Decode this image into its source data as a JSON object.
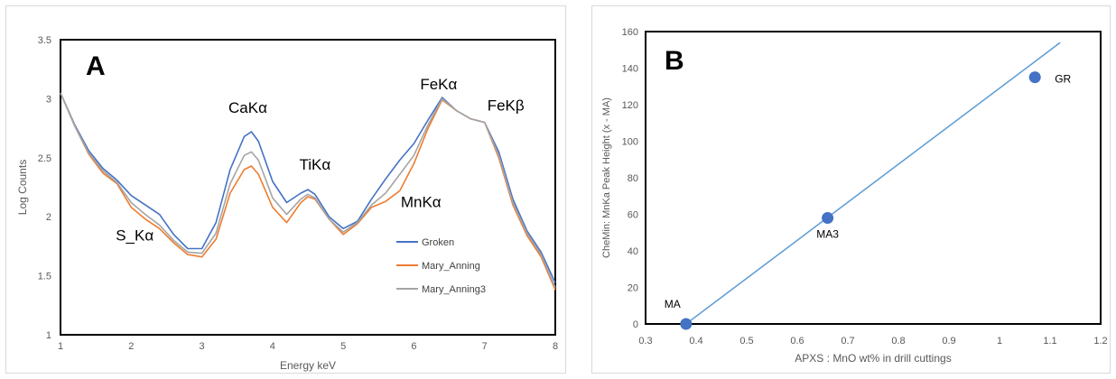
{
  "chart_data": [
    {
      "type": "line",
      "panel_label": "A",
      "xlabel": "Energy keV",
      "ylabel": "Log Counts",
      "xlim": [
        1,
        8
      ],
      "ylim": [
        1,
        3.5
      ],
      "xticks": [
        "1",
        "2",
        "3",
        "4",
        "5",
        "6",
        "7",
        "8"
      ],
      "yticks": [
        "1",
        "1.5",
        "2",
        "2.5",
        "3",
        "3.5"
      ],
      "grid": false,
      "legend_position": "bottom-right",
      "series": [
        {
          "name": "Groken",
          "color": "#4472c4",
          "x": [
            1.0,
            1.2,
            1.4,
            1.6,
            1.8,
            2.0,
            2.2,
            2.4,
            2.6,
            2.8,
            3.0,
            3.2,
            3.4,
            3.6,
            3.7,
            3.8,
            4.0,
            4.2,
            4.4,
            4.5,
            4.6,
            4.8,
            5.0,
            5.2,
            5.4,
            5.6,
            5.8,
            6.0,
            6.2,
            6.4,
            6.6,
            6.8,
            7.0,
            7.2,
            7.4,
            7.6,
            7.8,
            8.0
          ],
          "values": [
            3.05,
            2.78,
            2.56,
            2.41,
            2.31,
            2.18,
            2.1,
            2.02,
            1.85,
            1.73,
            1.73,
            1.95,
            2.4,
            2.68,
            2.72,
            2.64,
            2.3,
            2.12,
            2.2,
            2.23,
            2.19,
            2.0,
            1.9,
            1.96,
            2.15,
            2.32,
            2.48,
            2.62,
            2.82,
            3.01,
            2.9,
            2.83,
            2.8,
            2.55,
            2.15,
            1.88,
            1.7,
            1.44
          ]
        },
        {
          "name": "Mary_Anning",
          "color": "#ed7d31",
          "x": [
            1.0,
            1.2,
            1.4,
            1.6,
            1.8,
            2.0,
            2.2,
            2.4,
            2.6,
            2.8,
            3.0,
            3.2,
            3.4,
            3.6,
            3.7,
            3.8,
            4.0,
            4.2,
            4.4,
            4.5,
            4.6,
            4.8,
            5.0,
            5.2,
            5.4,
            5.6,
            5.8,
            6.0,
            6.2,
            6.4,
            6.6,
            6.8,
            7.0,
            7.2,
            7.4,
            7.6,
            7.8,
            8.0
          ],
          "values": [
            3.05,
            2.77,
            2.53,
            2.37,
            2.28,
            2.08,
            1.98,
            1.9,
            1.78,
            1.68,
            1.66,
            1.81,
            2.2,
            2.4,
            2.43,
            2.36,
            2.08,
            1.95,
            2.12,
            2.17,
            2.15,
            1.98,
            1.85,
            1.94,
            2.08,
            2.13,
            2.22,
            2.45,
            2.75,
            2.99,
            2.9,
            2.83,
            2.8,
            2.5,
            2.1,
            1.84,
            1.66,
            1.38
          ]
        },
        {
          "name": "Mary_Anning3",
          "color": "#a5a5a5",
          "x": [
            1.0,
            1.2,
            1.4,
            1.6,
            1.8,
            2.0,
            2.2,
            2.4,
            2.6,
            2.8,
            3.0,
            3.2,
            3.4,
            3.6,
            3.7,
            3.8,
            4.0,
            4.2,
            4.4,
            4.5,
            4.6,
            4.8,
            5.0,
            5.2,
            5.4,
            5.6,
            5.8,
            6.0,
            6.2,
            6.4,
            6.6,
            6.8,
            7.0,
            7.2,
            7.4,
            7.6,
            7.8,
            8.0
          ],
          "values": [
            3.05,
            2.77,
            2.54,
            2.39,
            2.29,
            2.12,
            2.02,
            1.93,
            1.8,
            1.7,
            1.69,
            1.86,
            2.28,
            2.52,
            2.55,
            2.48,
            2.16,
            2.02,
            2.15,
            2.19,
            2.16,
            1.98,
            1.87,
            1.95,
            2.1,
            2.2,
            2.36,
            2.52,
            2.78,
            3.0,
            2.9,
            2.83,
            2.8,
            2.52,
            2.12,
            1.86,
            1.68,
            1.4
          ]
        }
      ],
      "annotations": [
        {
          "text": "S_Kα",
          "x": 2.05,
          "y": 1.8
        },
        {
          "text": "CaKα",
          "x": 3.65,
          "y": 2.88
        },
        {
          "text": "TiKα",
          "x": 4.6,
          "y": 2.4
        },
        {
          "text": "MnKα",
          "x": 6.1,
          "y": 2.08
        },
        {
          "text": "FeKα",
          "x": 6.35,
          "y": 3.08
        },
        {
          "text": "FeKβ",
          "x": 7.3,
          "y": 2.9
        }
      ]
    },
    {
      "type": "scatter",
      "panel_label": "B",
      "xlabel": "APXS : MnO wt% in drill cuttings",
      "ylabel": "CheMin: MnKa Peak Height (x - MA)",
      "xlim": [
        0.3,
        1.2
      ],
      "ylim": [
        0,
        160
      ],
      "xticks": [
        "0.3",
        "0.4",
        "0.5",
        "0.6",
        "0.7",
        "0.8",
        "0.9",
        "1",
        "1.1",
        "1.2"
      ],
      "yticks": [
        "0",
        "20",
        "40",
        "60",
        "80",
        "100",
        "120",
        "140",
        "160"
      ],
      "grid": false,
      "marker_color": "#4472c4",
      "trendline_color": "#5b9bd5",
      "points": [
        {
          "label": "MA",
          "x": 0.38,
          "y": 0
        },
        {
          "label": "MA3",
          "x": 0.66,
          "y": 58
        },
        {
          "label": "GR",
          "x": 1.07,
          "y": 135
        }
      ],
      "trendline": {
        "x": [
          0.38,
          1.12
        ],
        "y": [
          0,
          154
        ]
      }
    }
  ]
}
